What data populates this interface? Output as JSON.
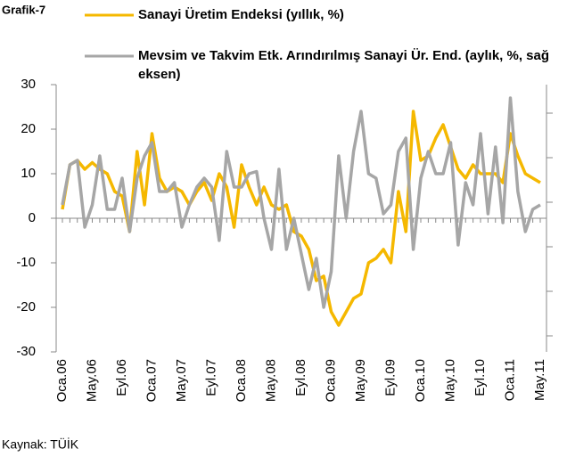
{
  "chart_data": {
    "type": "line",
    "title": "Grafik-7",
    "source": "Kaynak: TÜİK",
    "categories": [
      "Oca.06",
      null,
      null,
      null,
      "May.06",
      null,
      null,
      null,
      "Eyl.06",
      null,
      null,
      null,
      "Oca.07",
      null,
      null,
      null,
      "May.07",
      null,
      null,
      null,
      "Eyl.07",
      null,
      null,
      null,
      "Oca.08",
      null,
      null,
      null,
      "May.08",
      null,
      null,
      null,
      "Eyl.08",
      null,
      null,
      null,
      "Oca.09",
      null,
      null,
      null,
      "May.09",
      null,
      null,
      null,
      "Eyl.09",
      null,
      null,
      null,
      "Oca.10",
      null,
      null,
      null,
      "May.10",
      null,
      null,
      null,
      "Eyl.10",
      null,
      null,
      null,
      "Oca.11",
      null,
      null,
      null,
      "May.11"
    ],
    "series": [
      {
        "name": "Sanayi Üretim Endeksi (yıllık, %)",
        "color": "#f5b800",
        "values": [
          2,
          12,
          13,
          11,
          12.5,
          11,
          10,
          6,
          5,
          -3,
          15,
          3,
          19,
          9,
          6,
          7,
          6,
          3,
          6,
          8,
          4,
          10,
          7,
          -2,
          12,
          7,
          3,
          7,
          3,
          2,
          3,
          -3,
          -4,
          -7,
          -14,
          -13,
          -21,
          -24,
          -21,
          -18,
          -17,
          -10,
          -9,
          -7,
          -10,
          6,
          -3,
          24,
          13,
          14,
          18,
          21,
          16,
          11,
          9,
          12,
          10,
          10,
          10,
          8,
          19,
          14,
          10,
          9,
          8
        ]
      },
      {
        "name": "Mevsim ve Takvim Etk. Arındırılmış Sanayi Ür. End. (aylık, %, sağ eksen)",
        "color": "#a6a6a6",
        "axis": "y2",
        "values": [
          -0.12,
          1.68,
          1.88,
          -1.12,
          -0.12,
          2.08,
          -0.32,
          -0.32,
          1.08,
          -1.32,
          1.08,
          2.08,
          2.68,
          0.48,
          0.48,
          0.88,
          -1.12,
          -0.12,
          0.68,
          1.08,
          0.68,
          -1.72,
          2.28,
          0.68,
          0.68,
          1.28,
          1.38,
          -0.72,
          -2.12,
          1.48,
          -2.12,
          -0.72,
          -2.32,
          -3.92,
          -2.52,
          -4.72,
          -3.12,
          2.08,
          -0.72,
          2.28,
          4.08,
          1.28,
          1.08,
          -0.52,
          -0.12,
          2.28,
          2.88,
          -2.12,
          1.08,
          2.28,
          1.28,
          1.28,
          2.68,
          -1.92,
          0.88,
          -0.12,
          3.08,
          -0.52,
          2.48,
          -0.92,
          4.68,
          0.48,
          -1.32,
          -0.32,
          -0.12
        ]
      }
    ],
    "ylim": [
      -30,
      30
    ],
    "yticks": [
      -30,
      -20,
      -10,
      0,
      10,
      20,
      30
    ],
    "y2lim": [
      -6.72,
      5.28
    ],
    "y2ticks": [
      -6,
      -4,
      -2,
      0,
      2,
      4
    ]
  }
}
